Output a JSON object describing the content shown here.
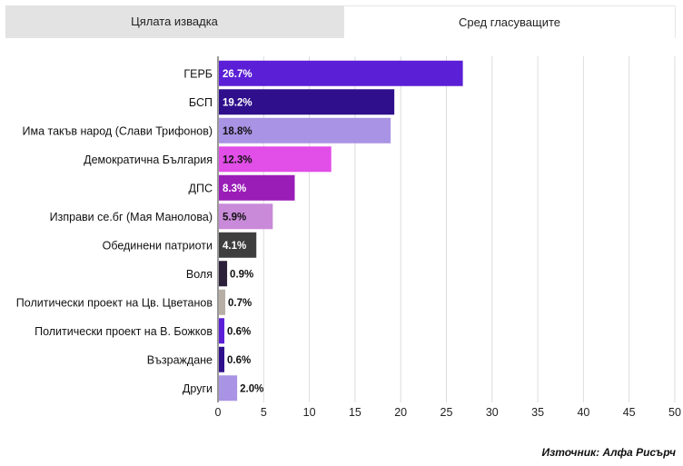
{
  "tabs": [
    {
      "label": "Цялата извадка",
      "active": false
    },
    {
      "label": "Сред гласуващите",
      "active": true
    }
  ],
  "source": "Източник: Алфа Рисърч",
  "chart_data": {
    "type": "bar",
    "orientation": "horizontal",
    "categories": [
      "ГЕРБ",
      "БСП",
      "Има такъв народ (Слави Трифонов)",
      "Демократична България",
      "ДПС",
      "Изправи се.бг (Мая Манолова)",
      "Обединени патриоти",
      "Воля",
      "Политически проект на Цв. Цветанов",
      "Политически проект на В. Божков",
      "Възраждане",
      "Други"
    ],
    "values": [
      26.7,
      19.2,
      18.8,
      12.3,
      8.3,
      5.9,
      4.1,
      0.9,
      0.7,
      0.6,
      0.6,
      2.0
    ],
    "labels": [
      "26.7%",
      "19.2%",
      "18.8%",
      "12.3%",
      "8.3%",
      "5.9%",
      "4.1%",
      "0.9%",
      "0.7%",
      "0.6%",
      "0.6%",
      "2.0%"
    ],
    "colors": [
      "#5b1fd6",
      "#2f0f8c",
      "#a993e4",
      "#e24ee8",
      "#9a1db8",
      "#c98ad9",
      "#3e3e3e",
      "#2c1f3a",
      "#b7aea5",
      "#5b1fd6",
      "#2f0f8c",
      "#a993e4"
    ],
    "label_colors": [
      "#ffffff",
      "#ffffff",
      "#111111",
      "#111111",
      "#ffffff",
      "#111111",
      "#ffffff",
      "#111111",
      "#111111",
      "#111111",
      "#111111",
      "#111111"
    ],
    "xlim": [
      0,
      50
    ],
    "xticks": [
      0,
      5,
      10,
      15,
      20,
      25,
      30,
      35,
      40,
      45,
      50
    ],
    "grid": true
  }
}
